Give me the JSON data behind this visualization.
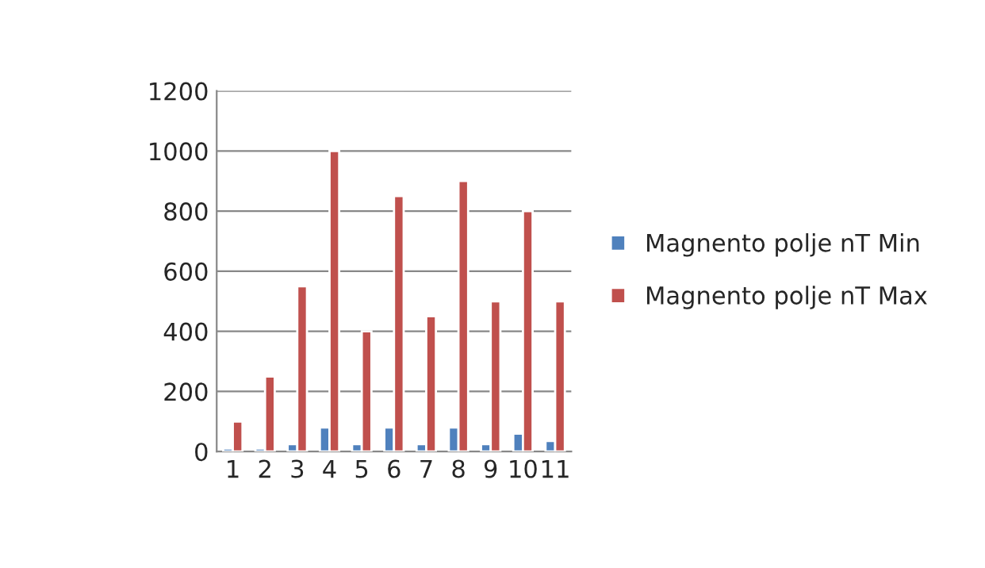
{
  "chart_data": {
    "type": "bar",
    "categories": [
      "1",
      "2",
      "3",
      "4",
      "5",
      "6",
      "7",
      "8",
      "9",
      "10",
      "11"
    ],
    "series": [
      {
        "name": "Magnento polje nT Min",
        "color": "#4f81bd",
        "values": [
          10,
          10,
          25,
          80,
          25,
          80,
          25,
          80,
          25,
          60,
          35
        ]
      },
      {
        "name": "Magnento polje nT Max",
        "color": "#c0504d",
        "values": [
          100,
          250,
          550,
          1000,
          400,
          850,
          450,
          900,
          500,
          800,
          500
        ]
      }
    ],
    "ylim": [
      0,
      1200
    ],
    "yticks": [
      0,
      200,
      400,
      600,
      800,
      1000,
      1200
    ],
    "grid": "y",
    "legend": "right"
  }
}
